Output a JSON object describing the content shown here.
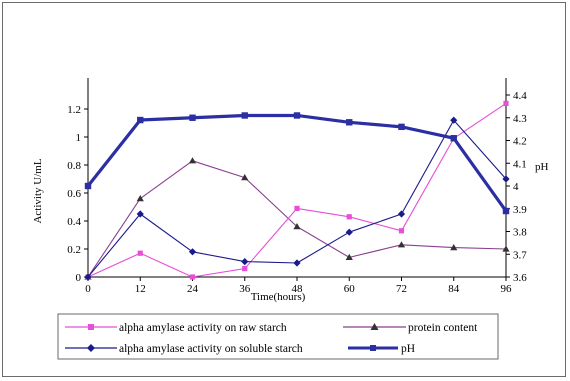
{
  "chart_data": {
    "type": "line",
    "title": "",
    "xlabel": "Time(hours)",
    "ylabel": "Activity U/mL",
    "y2label": "pH",
    "x": [
      0,
      12,
      24,
      36,
      48,
      60,
      72,
      84,
      96
    ],
    "x_ticks": [
      "0",
      "12",
      "24",
      "36",
      "48",
      "60",
      "72",
      "84",
      "96"
    ],
    "ylim": [
      0,
      1.3
    ],
    "y_ticks": [
      "0",
      "0.2",
      "0.4",
      "0.6",
      "0.8",
      "1",
      "1.2"
    ],
    "y2lim": [
      3.6,
      4.4
    ],
    "y2_ticks": [
      "3.6",
      "3.7",
      "3.8",
      "3.9",
      "4",
      "4.1",
      "4.2",
      "4.3",
      "4.4"
    ],
    "grid": false,
    "legend_placement": "bottom",
    "series": [
      {
        "name": "alpha amylase activity on raw starch",
        "axis": "left",
        "color": "#e64fd6",
        "marker": "square",
        "values": [
          0,
          0.17,
          0,
          0.06,
          0.49,
          0.43,
          0.33,
          0.99,
          1.24
        ]
      },
      {
        "name": "protein content",
        "axis": "left",
        "color": "#8a3f8f",
        "marker": "triangle",
        "values": [
          0,
          0.56,
          0.83,
          0.71,
          0.36,
          0.14,
          0.23,
          0.21,
          0.2
        ]
      },
      {
        "name": "alpha amylase activity on soluble starch",
        "axis": "left",
        "color": "#1a1a8c",
        "marker": "diamond",
        "values": [
          0,
          0.45,
          0.18,
          0.11,
          0.1,
          0.32,
          0.45,
          1.12,
          0.7
        ]
      },
      {
        "name": "pH",
        "axis": "right",
        "color": "#2b2fa3",
        "marker": "square",
        "values": [
          4.0,
          4.29,
          4.3,
          4.31,
          4.31,
          4.28,
          4.26,
          4.21,
          3.89
        ]
      }
    ]
  }
}
